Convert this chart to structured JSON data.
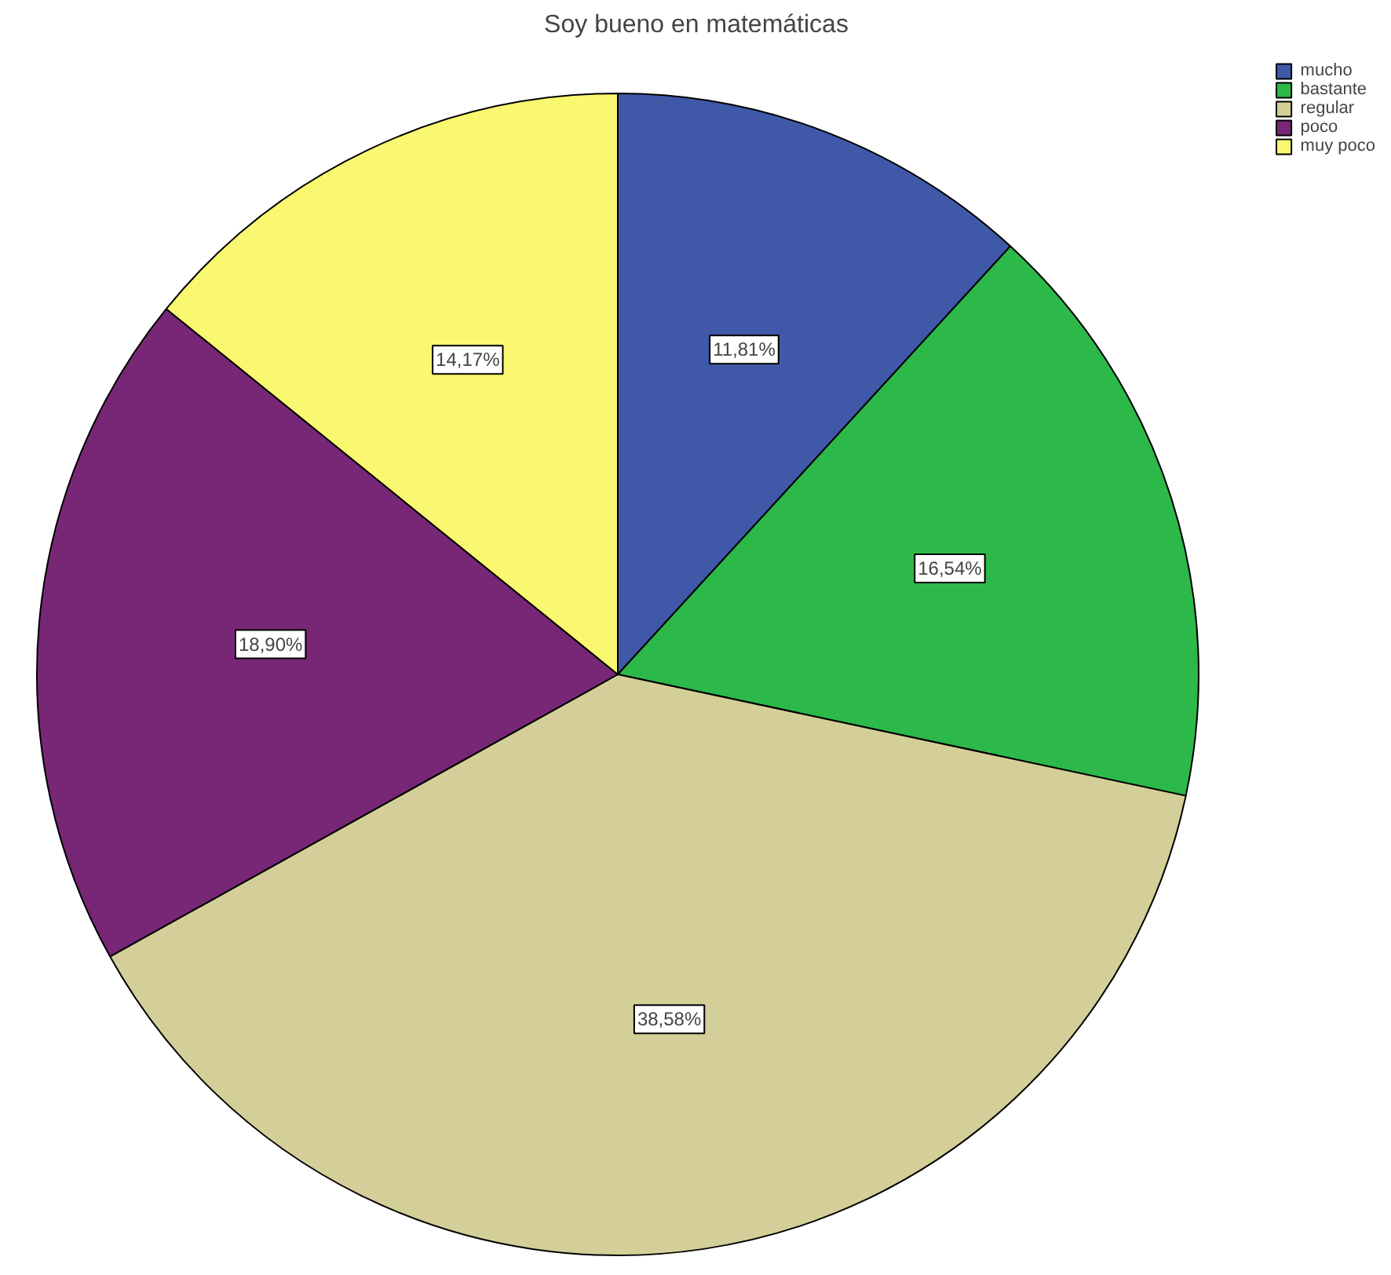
{
  "chart_data": {
    "type": "pie",
    "title": "Soy bueno en matemáticas",
    "categories": [
      "mucho",
      "bastante",
      "regular",
      "poco",
      "muy poco"
    ],
    "values": [
      11.81,
      16.54,
      38.58,
      18.9,
      14.17
    ],
    "colors": [
      "#3f58a8",
      "#2db84a",
      "#d4cf98",
      "#772776",
      "#f9f870"
    ],
    "value_labels": [
      "11,81%",
      "16,54%",
      "38,58%",
      "18,90%",
      "14,17%"
    ],
    "legend": "top right"
  }
}
